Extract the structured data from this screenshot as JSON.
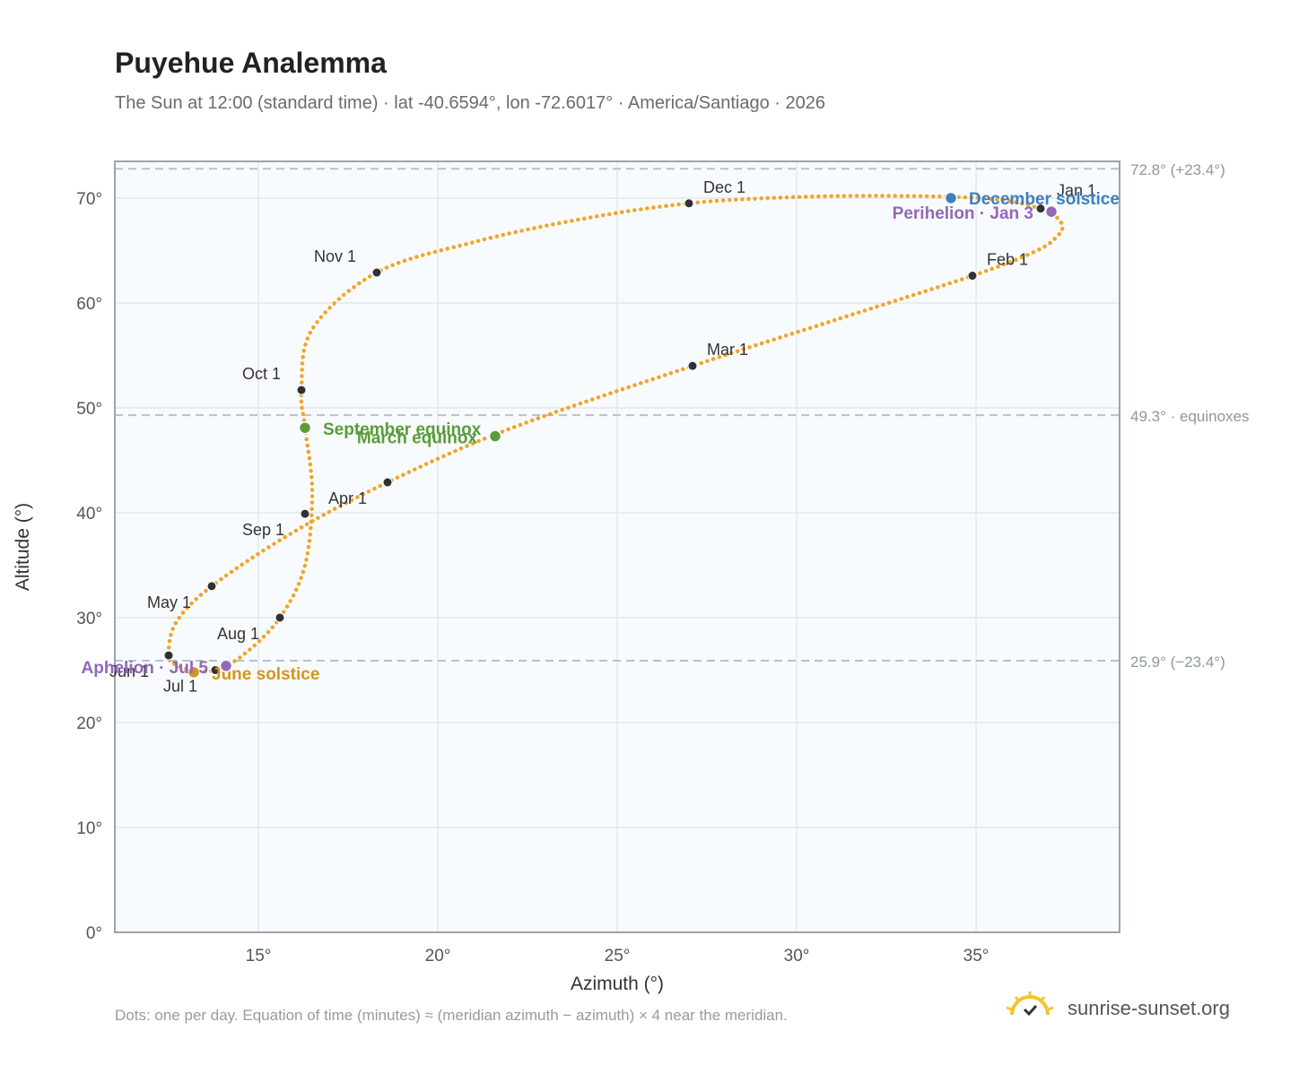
{
  "header": {
    "title": "Puyehue Analemma",
    "subtitle": "The Sun at 12:00 (standard time) · lat -40.6594°, lon -72.6017° · America/Santiago · 2026"
  },
  "footer": {
    "note": "Dots: one per day. Equation of time (minutes) ≈ (meridian azimuth − azimuth) × 4 near the meridian.",
    "brand": "sunrise-sunset.org"
  },
  "colors": {
    "curve": "#f0a52a",
    "month_marker": "#2f3136",
    "equinox": "#5a9c3a",
    "december_solstice": "#3f7fbf",
    "june_solstice": "#d4951a",
    "apsis": "#9268b8",
    "reference_line": "#b8c0cc",
    "plot_background": "#f8fbfd"
  },
  "chart_data": {
    "type": "scatter",
    "title": "Puyehue Analemma",
    "xlabel": "Azimuth (°)",
    "ylabel": "Altitude (°)",
    "xlim": [
      11,
      39
    ],
    "ylim": [
      0,
      73.5
    ],
    "x_ticks": [
      15,
      20,
      25,
      30,
      35
    ],
    "x_tick_labels": [
      "15°",
      "20°",
      "25°",
      "30°",
      "35°"
    ],
    "y_ticks": [
      0,
      10,
      20,
      30,
      40,
      50,
      60,
      70
    ],
    "y_tick_labels": [
      "0°",
      "10°",
      "20°",
      "30°",
      "40°",
      "50°",
      "60°",
      "70°"
    ],
    "grid": true,
    "reference_lines": [
      {
        "y": 72.8,
        "label": "72.8° (+23.4°)"
      },
      {
        "y": 49.3,
        "label": "49.3° · equinoxes"
      },
      {
        "y": 25.9,
        "label": "25.9° (−23.4°)"
      }
    ],
    "month_markers": [
      {
        "label": "Jan 1",
        "x": 36.8,
        "y": 69.0
      },
      {
        "label": "Feb 1",
        "x": 34.9,
        "y": 62.6
      },
      {
        "label": "Mar 1",
        "x": 27.1,
        "y": 54.0
      },
      {
        "label": "Apr 1",
        "x": 18.6,
        "y": 42.9
      },
      {
        "label": "May 1",
        "x": 13.7,
        "y": 33.0
      },
      {
        "label": "Jun 1",
        "x": 12.5,
        "y": 26.4
      },
      {
        "label": "Jul 1",
        "x": 13.8,
        "y": 25.0
      },
      {
        "label": "Aug 1",
        "x": 15.6,
        "y": 30.0
      },
      {
        "label": "Sep 1",
        "x": 16.3,
        "y": 39.9
      },
      {
        "label": "Oct 1",
        "x": 16.2,
        "y": 51.7
      },
      {
        "label": "Nov 1",
        "x": 18.3,
        "y": 62.9
      },
      {
        "label": "Dec 1",
        "x": 27.0,
        "y": 69.5
      }
    ],
    "events": [
      {
        "label": "December solstice",
        "x": 34.3,
        "y": 70.0,
        "color": "#3f7fbf"
      },
      {
        "label": "Perihelion · Jan 3",
        "x": 37.1,
        "y": 68.7,
        "color": "#9268b8"
      },
      {
        "label": "September equinox",
        "x": 16.3,
        "y": 48.1,
        "color": "#5a9c3a"
      },
      {
        "label": "March equinox",
        "x": 21.6,
        "y": 47.3,
        "color": "#5a9c3a"
      },
      {
        "label": "June solstice",
        "x": 13.2,
        "y": 24.8,
        "color": "#d4951a"
      },
      {
        "label": "Aphelion · Jul 5",
        "x": 14.1,
        "y": 25.4,
        "color": "#9268b8"
      }
    ],
    "path": {
      "x": [
        36.8,
        37.2,
        37.4,
        37.3,
        36.7,
        34.9,
        31.0,
        27.1,
        22.0,
        18.6,
        16.0,
        13.7,
        12.7,
        12.5,
        12.7,
        13.2,
        13.8,
        14.6,
        15.6,
        16.3,
        16.5,
        16.3,
        16.2,
        16.5,
        18.3,
        21.0,
        24.0,
        27.0,
        30.0,
        33.0,
        35.5,
        36.8
      ],
      "y": [
        69.0,
        68.3,
        67.4,
        66.5,
        65.0,
        62.6,
        58.3,
        54.0,
        48.0,
        42.9,
        38.2,
        33.0,
        29.5,
        26.4,
        25.5,
        25.0,
        25.0,
        26.5,
        30.0,
        35.0,
        42.0,
        48.1,
        51.7,
        57.5,
        62.9,
        65.8,
        68.0,
        69.5,
        70.1,
        70.2,
        69.9,
        69.0
      ]
    }
  }
}
